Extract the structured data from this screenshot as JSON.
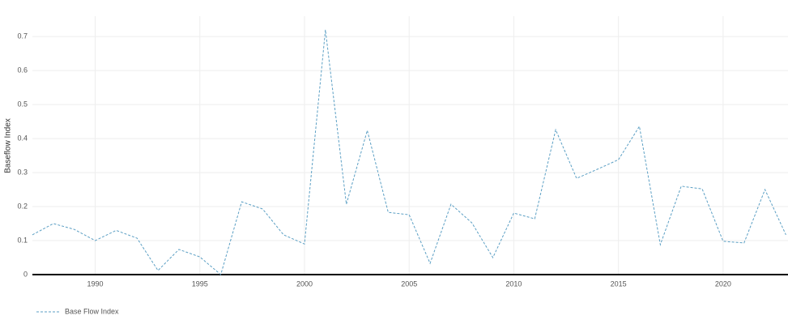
{
  "chart_data": {
    "type": "line",
    "y_label": "Baseflow Index",
    "x": [
      1987,
      1988,
      1989,
      1990,
      1991,
      1992,
      1993,
      1994,
      1995,
      1996,
      1997,
      1998,
      1999,
      2000,
      2001,
      2002,
      2003,
      2004,
      2005,
      2006,
      2007,
      2008,
      2009,
      2010,
      2011,
      2012,
      2013,
      2014,
      2015,
      2016,
      2017,
      2018,
      2019,
      2020,
      2021,
      2022,
      2023
    ],
    "series": [
      {
        "name": "Base Flow Index",
        "color": "#5b9fc4",
        "values": [
          0.117,
          0.15,
          0.133,
          0.1,
          0.13,
          0.107,
          0.012,
          0.074,
          0.052,
          0.0,
          0.214,
          0.193,
          0.117,
          0.09,
          0.72,
          0.207,
          0.424,
          0.183,
          0.176,
          0.033,
          0.207,
          0.152,
          0.05,
          0.181,
          0.164,
          0.426,
          0.283,
          0.31,
          0.338,
          0.436,
          0.088,
          0.26,
          0.252,
          0.098,
          0.093,
          0.25,
          0.117
        ]
      }
    ],
    "xlim": [
      1987,
      2023.1
    ],
    "xticks": [
      1990,
      1995,
      2000,
      2005,
      2010,
      2015,
      2020
    ],
    "ylim": [
      0,
      0.76
    ],
    "yticks": [
      0,
      0.1,
      0.2,
      0.3,
      0.4,
      0.5,
      0.6,
      0.7
    ],
    "grid": true,
    "legend": "bottom-left"
  }
}
